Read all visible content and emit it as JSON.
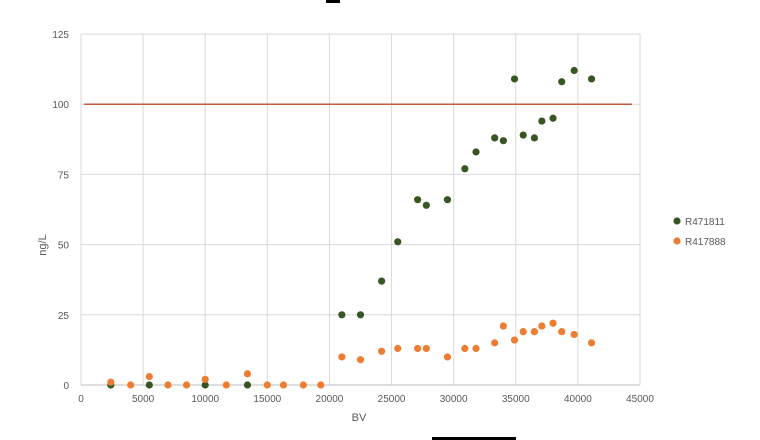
{
  "chart_data": {
    "type": "scatter",
    "xlabel": "BV",
    "ylabel": "ng/L",
    "xlim": [
      0,
      45000
    ],
    "ylim": [
      0,
      125
    ],
    "x_ticks": [
      "0",
      "5000",
      "10000",
      "15000",
      "20000",
      "25000",
      "30000",
      "35000",
      "40000",
      "45000"
    ],
    "y_ticks": [
      "0",
      "25",
      "50",
      "75",
      "100",
      "125"
    ],
    "grid": true,
    "legend_position": "right",
    "reference_line": {
      "y": 100,
      "color": "#c55a3c"
    },
    "series": [
      {
        "name": "R471811",
        "color": "#375623",
        "points": [
          [
            2400,
            0
          ],
          [
            5500,
            0
          ],
          [
            10000,
            0
          ],
          [
            13400,
            0
          ],
          [
            21000,
            25
          ],
          [
            22500,
            25
          ],
          [
            24200,
            37
          ],
          [
            25500,
            51
          ],
          [
            27100,
            66
          ],
          [
            27800,
            64
          ],
          [
            29500,
            66
          ],
          [
            30900,
            77
          ],
          [
            31800,
            83
          ],
          [
            33300,
            88
          ],
          [
            34000,
            87
          ],
          [
            34900,
            109
          ],
          [
            35600,
            89
          ],
          [
            36500,
            88
          ],
          [
            37100,
            94
          ],
          [
            38000,
            95
          ],
          [
            38700,
            108
          ],
          [
            39700,
            112
          ],
          [
            41100,
            109
          ]
        ]
      },
      {
        "name": "R417888",
        "color": "#ed7d31",
        "points": [
          [
            2400,
            1
          ],
          [
            4000,
            0
          ],
          [
            5500,
            3
          ],
          [
            7000,
            0
          ],
          [
            8500,
            0
          ],
          [
            10000,
            2
          ],
          [
            11700,
            0
          ],
          [
            13400,
            4
          ],
          [
            15000,
            0
          ],
          [
            16300,
            0
          ],
          [
            17900,
            0
          ],
          [
            19300,
            0
          ],
          [
            21000,
            10
          ],
          [
            22500,
            9
          ],
          [
            24200,
            12
          ],
          [
            25500,
            13
          ],
          [
            27100,
            13
          ],
          [
            27800,
            13
          ],
          [
            29500,
            10
          ],
          [
            30900,
            13
          ],
          [
            31800,
            13
          ],
          [
            33300,
            15
          ],
          [
            34000,
            21
          ],
          [
            34900,
            16
          ],
          [
            35600,
            19
          ],
          [
            36500,
            19
          ],
          [
            37100,
            21
          ],
          [
            38000,
            22
          ],
          [
            38700,
            19
          ],
          [
            39700,
            18
          ],
          [
            41100,
            15
          ]
        ]
      }
    ]
  }
}
